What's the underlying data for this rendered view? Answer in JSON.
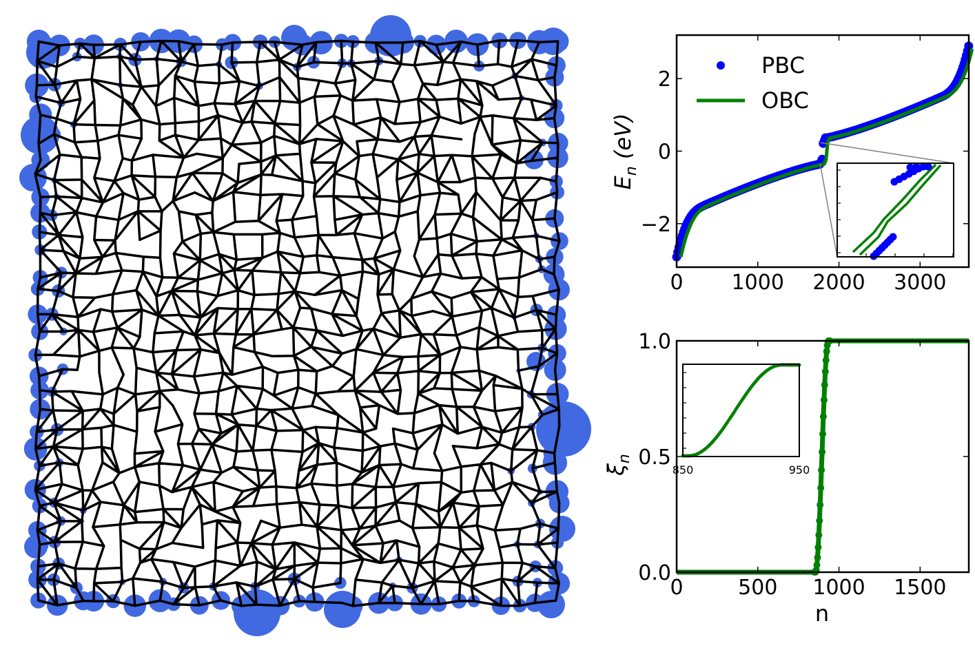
{
  "colors": {
    "pbc": "#0000ff",
    "obc": "#008000",
    "site_weight": "#4169e1",
    "network": "#000000",
    "zoom_connector": "#808080"
  },
  "chart_data": [
    {
      "id": "lattice",
      "type": "network",
      "title": "",
      "description_values": {
        "rows": 30,
        "cols": 27
      },
      "note": "Disordered network with bond lines; circles mark edge-localized state weight"
    },
    {
      "id": "energy_spectrum",
      "type": "scatter",
      "title": "",
      "xlabel": "",
      "ylabel_main": "E",
      "ylabel_sub": "n",
      "ylabel_unit": " (eV)",
      "xlim": [
        0,
        3600
      ],
      "ylim": [
        -3.2,
        3.2
      ],
      "xticks": [
        0,
        1000,
        2000,
        3000
      ],
      "xtick_labels": [
        "0",
        "1000",
        "2000",
        "3000"
      ],
      "yticks": [
        -2,
        0,
        2
      ],
      "ytick_labels": [
        "−2",
        "0",
        "2"
      ],
      "legend": {
        "position": "top-left",
        "entries": [
          "PBC",
          "OBC"
        ]
      },
      "n_points": 3600,
      "gap_index": 1800,
      "series": [
        {
          "name": "PBC",
          "style": "markers"
        },
        {
          "name": "OBC",
          "style": "line"
        }
      ],
      "inset": {
        "position": "bottom-right",
        "xlim": [
          1775,
          1825
        ],
        "ylim": [
          -0.25,
          0.25
        ],
        "note": "zoom on gap region near E = 0"
      }
    },
    {
      "id": "xi_plot",
      "type": "line",
      "title": "",
      "xlabel": "n",
      "ylabel_main": "ξ",
      "ylabel_sub": "n",
      "xlim": [
        0,
        1800
      ],
      "ylim": [
        0,
        1.0
      ],
      "xticks": [
        0,
        500,
        1000,
        1500
      ],
      "xtick_labels": [
        "0",
        "500",
        "1000",
        "1500"
      ],
      "yticks": [
        0,
        0.5,
        1.0
      ],
      "ytick_labels": [
        "0.0",
        "0.5",
        "1.0"
      ],
      "step_start": 855,
      "step_end": 935,
      "inset": {
        "position": "top-left",
        "xlim": [
          850,
          950
        ],
        "ylim": [
          0,
          1
        ],
        "xtick_labels": [
          "850",
          "950"
        ]
      }
    }
  ]
}
